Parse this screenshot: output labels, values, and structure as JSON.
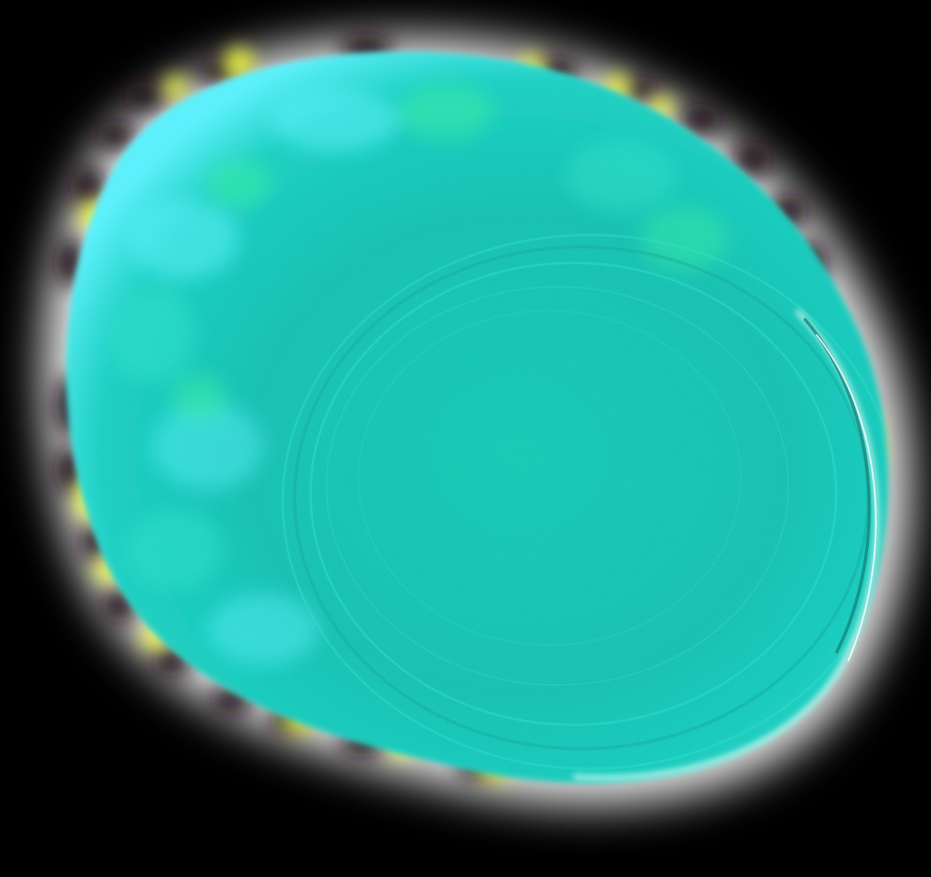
{
  "image": {
    "subject": "abstract-glowing-blob",
    "colors": {
      "background": "#000000",
      "core": "#14c4b0",
      "core_light": "#2fe0c8",
      "cyan_glow": "#5ff2ff",
      "yellow_glow": "#f4ff3a",
      "speckle_dark": "#1a0d14",
      "rim_light": "#e6fff8"
    }
  }
}
